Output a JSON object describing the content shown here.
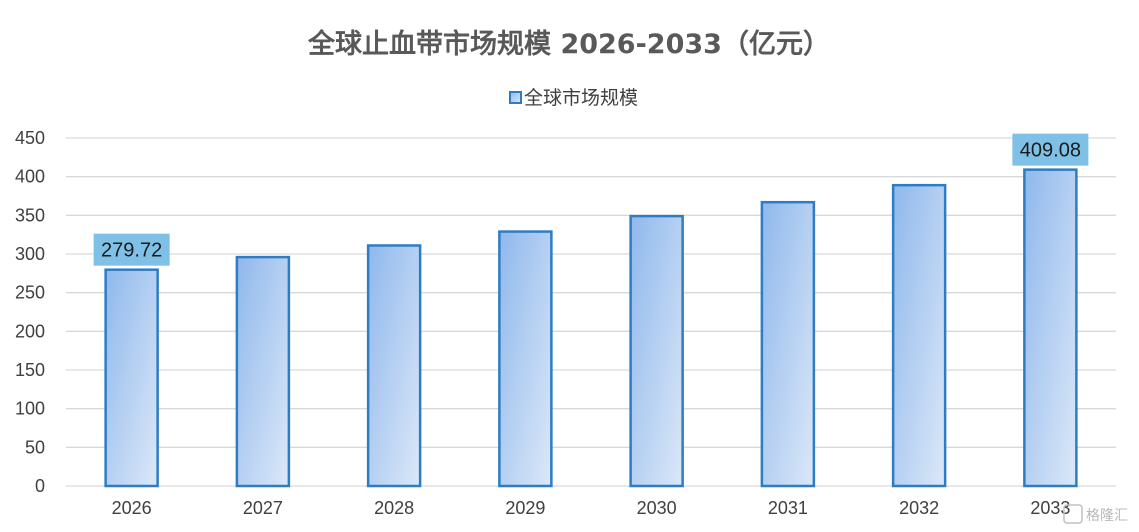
{
  "chart_data": {
    "type": "bar",
    "title": "全球止血带市场规模 2026-2033（亿元）",
    "categories": [
      "2026",
      "2027",
      "2028",
      "2029",
      "2030",
      "2031",
      "2032",
      "2033"
    ],
    "series": [
      {
        "name": "全球市场规模",
        "values": [
          279.72,
          296,
          311,
          329,
          349,
          367,
          389,
          409.08
        ]
      }
    ],
    "data_labels": [
      {
        "category": "2026",
        "text": "279.72"
      },
      {
        "category": "2033",
        "text": "409.08"
      }
    ],
    "ylim": [
      0,
      450
    ],
    "yticks": [
      0,
      50,
      100,
      150,
      200,
      250,
      300,
      350,
      400,
      450
    ],
    "grid": true,
    "legend": "top-center",
    "colors": {
      "bar_fill_top": "#8fb8ec",
      "bar_fill_bottom": "#dce8f8",
      "bar_border": "#2e7dc4",
      "label_bg": "#7fc0e6",
      "grid": "#d9d9d9"
    }
  },
  "watermark": {
    "text": "格隆汇"
  }
}
